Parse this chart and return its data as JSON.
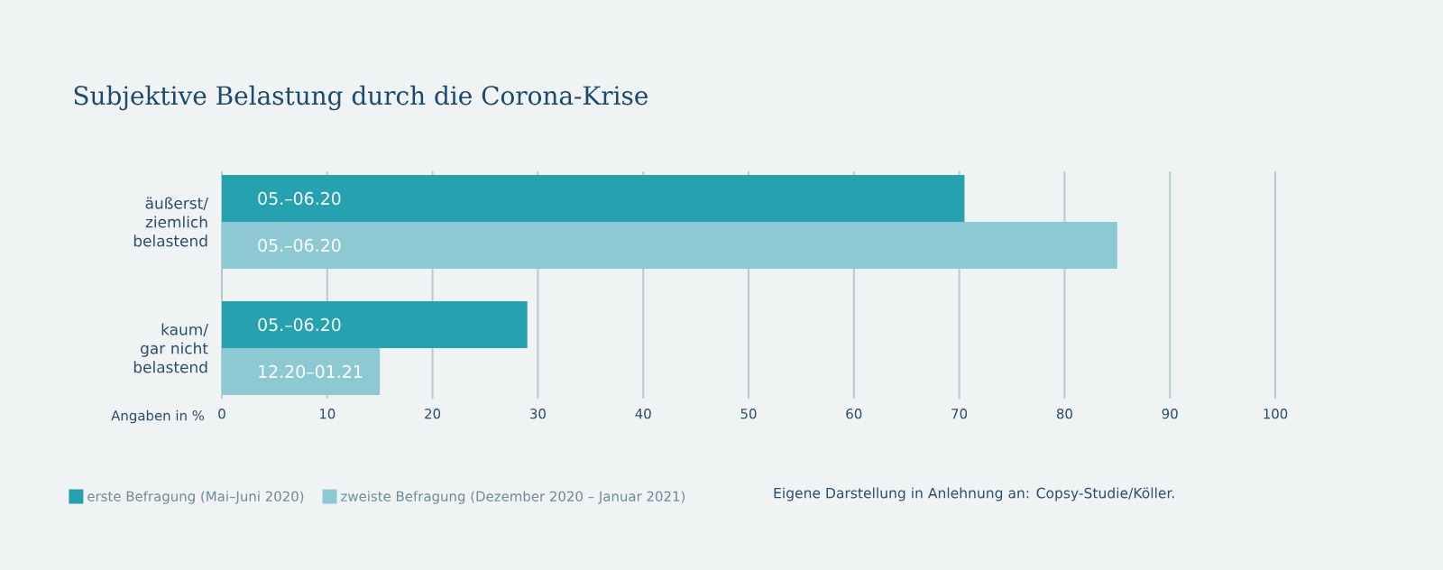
{
  "chart_data": {
    "type": "bar",
    "orientation": "horizontal",
    "title": "Subjektive Belastung durch die Corona-Krise",
    "categories": [
      "äußerst/ ziemlich belastend",
      "kaum/ gar nicht belastend"
    ],
    "series": [
      {
        "name": "erste Befragung (Mai–Juni 2020)",
        "color": "#25a1b0",
        "values": [
          70.5,
          29
        ],
        "value_labels": [
          "05.–06.20",
          "05.–06.20"
        ]
      },
      {
        "name": "zweiste Befragung (Dezember 2020 – Januar 2021)",
        "color": "#8dc9d3",
        "values": [
          85,
          15
        ],
        "value_labels": [
          "05.–06.20",
          "12.20–01.21"
        ]
      }
    ],
    "xlabel": "Angaben in %",
    "xlim": [
      0,
      100
    ],
    "xticks": [
      0,
      10,
      20,
      30,
      40,
      50,
      60,
      70,
      80,
      90,
      100
    ],
    "grid": "x",
    "legend": "bottom",
    "annotations": [
      "Eigene Darstellung in Anlehnung an: Copsy-Studie/Köller."
    ]
  }
}
